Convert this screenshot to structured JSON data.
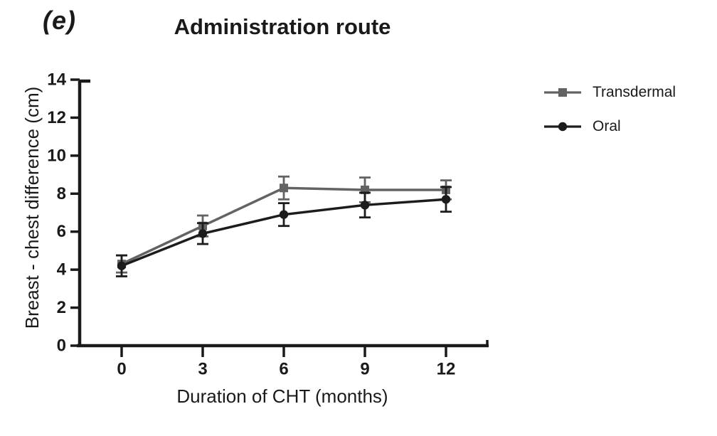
{
  "figure": {
    "panel_label": "(e)",
    "title": "Administration route"
  },
  "chart_data": {
    "type": "line",
    "title": "Administration route",
    "xlabel": "Duration of CHT (months)",
    "ylabel": "Breast - chest difference (cm)",
    "x": [
      0,
      3,
      6,
      9,
      12
    ],
    "xticks": [
      0,
      3,
      6,
      9,
      12
    ],
    "yticks": [
      0,
      2,
      4,
      6,
      8,
      10,
      12,
      14
    ],
    "ylim": [
      0,
      14
    ],
    "xlim": [
      0,
      12
    ],
    "grid": false,
    "error_bars": true,
    "legend_position": "right",
    "axis_color": "#1a1a1a",
    "series": [
      {
        "name": "Transdermal",
        "marker": "square",
        "color": "#636363",
        "values": [
          4.3,
          6.3,
          8.3,
          8.2,
          8.2
        ],
        "errors": [
          0.45,
          0.55,
          0.6,
          0.65,
          0.5
        ]
      },
      {
        "name": "Oral",
        "marker": "circle",
        "color": "#1c1c1c",
        "values": [
          4.2,
          5.9,
          6.9,
          7.4,
          7.7
        ],
        "errors": [
          0.55,
          0.55,
          0.6,
          0.65,
          0.65
        ]
      }
    ]
  }
}
